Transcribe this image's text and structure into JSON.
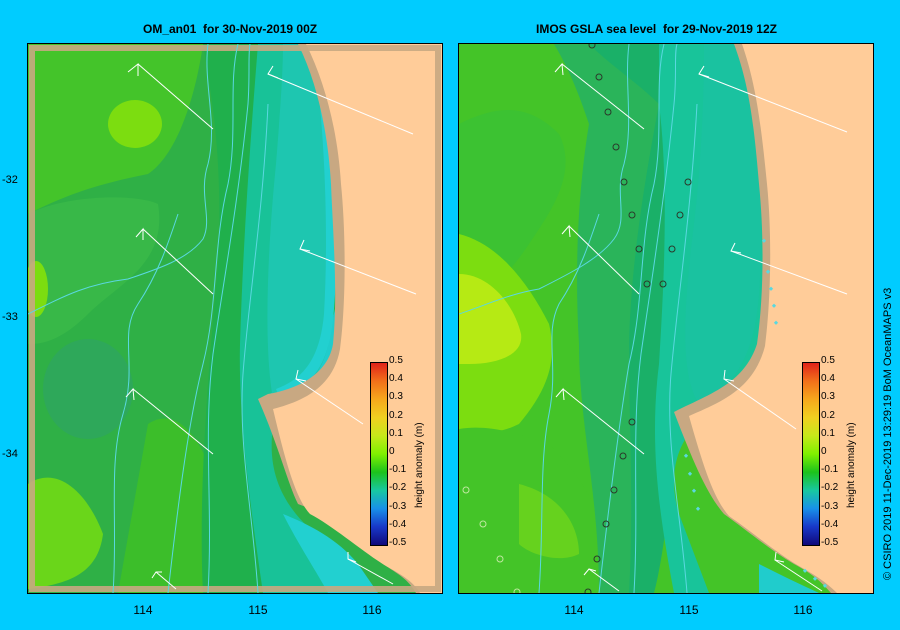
{
  "panels": [
    {
      "title": "OM_an01  for 30-Nov-2019 00Z"
    },
    {
      "title": "IMOS GSLA sea level  for 29-Nov-2019 12Z"
    }
  ],
  "axes": {
    "lat_labels": [
      "-32",
      "-33",
      "-34"
    ],
    "lon_labels": [
      "114",
      "115",
      "116"
    ]
  },
  "colorbar": {
    "ticks": [
      "0.5",
      "0.4",
      "0.3",
      "0.2",
      "0.1",
      "0",
      "-0.1",
      "-0.2",
      "-0.3",
      "-0.4",
      "-0.5"
    ],
    "label": "height anomaly (m)",
    "colors": [
      "#e0231a",
      "#f2701a",
      "#f6a81c",
      "#f0d020",
      "#c6e81a",
      "#80f000",
      "#1cc21c",
      "#18c8a0",
      "#1890e8",
      "#1838c8",
      "#10087a"
    ]
  },
  "credit": "© CSIRO 2019   11-Dec-2019 13:29:19 BoM OceanMAPS v3",
  "colors": {
    "background": "#00ccff",
    "land": "#ffcc99",
    "shelf": "#c8a882",
    "contour": "#5ad8e0"
  }
}
